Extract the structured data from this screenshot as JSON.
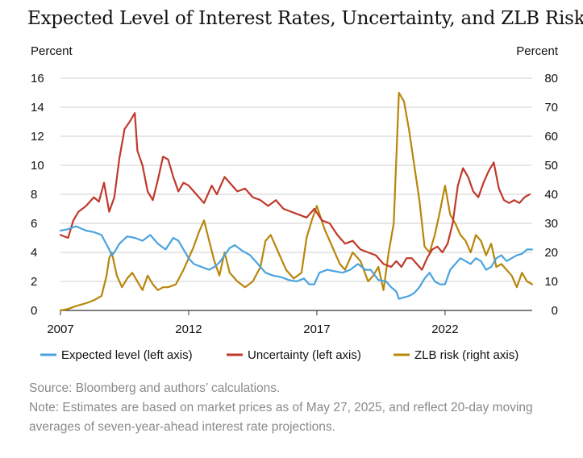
{
  "chart_data": {
    "type": "line",
    "title": "Expected Level of Interest Rates, Uncertainty, and ZLB Risk",
    "left_axis": {
      "label": "Percent",
      "ylim": [
        0,
        16
      ],
      "ticks": [
        "0",
        "2",
        "4",
        "6",
        "8",
        "10",
        "12",
        "14",
        "16"
      ]
    },
    "right_axis": {
      "label": "Percent",
      "ylim": [
        0,
        80
      ],
      "ticks": [
        "0",
        "10",
        "20",
        "30",
        "40",
        "50",
        "60",
        "70",
        "80"
      ]
    },
    "x_axis": {
      "xlim": [
        2007,
        2025.4
      ],
      "ticks": [
        2007,
        2012,
        2017,
        2022
      ],
      "tick_labels": [
        "2007",
        "2012",
        "2017",
        "2022"
      ]
    },
    "grid": true,
    "legend_position": "bottom",
    "series": [
      {
        "name": "Expected level (left axis)",
        "axis": "left",
        "color": "#4aa3df",
        "x": [
          2007.0,
          2007.3,
          2007.6,
          2008.0,
          2008.3,
          2008.6,
          2008.9,
          2009.0,
          2009.1,
          2009.3,
          2009.6,
          2009.9,
          2010.2,
          2010.5,
          2010.8,
          2011.1,
          2011.4,
          2011.6,
          2011.8,
          2012.0,
          2012.2,
          2012.5,
          2012.8,
          2013.0,
          2013.2,
          2013.4,
          2013.6,
          2013.8,
          2014.1,
          2014.4,
          2014.7,
          2015.0,
          2015.3,
          2015.6,
          2015.9,
          2016.2,
          2016.5,
          2016.7,
          2016.9,
          2017.1,
          2017.4,
          2017.7,
          2018.0,
          2018.3,
          2018.6,
          2018.9,
          2019.1,
          2019.4,
          2019.7,
          2019.9,
          2020.1,
          2020.2,
          2020.4,
          2020.6,
          2020.8,
          2021.0,
          2021.2,
          2021.4,
          2021.6,
          2021.8,
          2022.0,
          2022.2,
          2022.4,
          2022.6,
          2022.8,
          2023.0,
          2023.2,
          2023.4,
          2023.6,
          2023.8,
          2024.0,
          2024.2,
          2024.4,
          2024.6,
          2024.8,
          2025.0,
          2025.2,
          2025.4
        ],
        "values": [
          5.5,
          5.6,
          5.8,
          5.5,
          5.4,
          5.2,
          4.2,
          3.8,
          4.0,
          4.6,
          5.1,
          5.0,
          4.8,
          5.2,
          4.6,
          4.2,
          5.0,
          4.8,
          4.2,
          3.6,
          3.2,
          3.0,
          2.8,
          3.0,
          3.3,
          3.8,
          4.3,
          4.5,
          4.1,
          3.8,
          3.2,
          2.6,
          2.4,
          2.3,
          2.1,
          2.0,
          2.2,
          1.8,
          1.8,
          2.6,
          2.8,
          2.7,
          2.6,
          2.8,
          3.2,
          2.8,
          2.8,
          2.1,
          2.0,
          1.6,
          1.3,
          0.8,
          0.9,
          1.0,
          1.2,
          1.6,
          2.2,
          2.6,
          2.0,
          1.8,
          1.8,
          2.8,
          3.2,
          3.6,
          3.4,
          3.2,
          3.6,
          3.4,
          2.8,
          3.0,
          3.6,
          3.8,
          3.4,
          3.6,
          3.8,
          3.9,
          4.2,
          4.2
        ]
      },
      {
        "name": "Uncertainty (left axis)",
        "axis": "left",
        "color": "#c0392b",
        "x": [
          2007.0,
          2007.3,
          2007.5,
          2007.7,
          2008.0,
          2008.3,
          2008.5,
          2008.7,
          2008.9,
          2009.1,
          2009.3,
          2009.5,
          2009.7,
          2009.9,
          2010.0,
          2010.2,
          2010.4,
          2010.6,
          2010.8,
          2011.0,
          2011.2,
          2011.4,
          2011.6,
          2011.8,
          2012.0,
          2012.3,
          2012.6,
          2012.9,
          2013.1,
          2013.4,
          2013.6,
          2013.9,
          2014.2,
          2014.5,
          2014.8,
          2015.1,
          2015.4,
          2015.7,
          2016.0,
          2016.3,
          2016.6,
          2016.9,
          2017.2,
          2017.5,
          2017.8,
          2018.1,
          2018.4,
          2018.7,
          2019.0,
          2019.3,
          2019.6,
          2019.9,
          2020.1,
          2020.3,
          2020.5,
          2020.7,
          2020.9,
          2021.1,
          2021.3,
          2021.5,
          2021.7,
          2021.9,
          2022.1,
          2022.3,
          2022.5,
          2022.7,
          2022.9,
          2023.1,
          2023.3,
          2023.5,
          2023.7,
          2023.9,
          2024.1,
          2024.3,
          2024.5,
          2024.7,
          2024.9,
          2025.1,
          2025.3
        ],
        "values": [
          5.2,
          5.0,
          6.2,
          6.8,
          7.2,
          7.8,
          7.5,
          8.8,
          6.8,
          7.8,
          10.5,
          12.5,
          13.0,
          13.6,
          11.0,
          10.0,
          8.2,
          7.6,
          9.0,
          10.6,
          10.4,
          9.2,
          8.2,
          8.8,
          8.6,
          8.0,
          7.4,
          8.6,
          8.0,
          9.2,
          8.8,
          8.2,
          8.4,
          7.8,
          7.6,
          7.2,
          7.6,
          7.0,
          6.8,
          6.6,
          6.4,
          7.0,
          6.2,
          6.0,
          5.2,
          4.6,
          4.8,
          4.2,
          4.0,
          3.8,
          3.2,
          3.0,
          3.4,
          3.0,
          3.6,
          3.6,
          3.2,
          2.8,
          3.6,
          4.2,
          4.4,
          4.0,
          4.6,
          6.0,
          8.6,
          9.8,
          9.2,
          8.2,
          7.8,
          8.8,
          9.6,
          10.2,
          8.4,
          7.6,
          7.4,
          7.6,
          7.4,
          7.8,
          8.0
        ]
      },
      {
        "name": "ZLB risk (right axis)",
        "axis": "right",
        "color": "#b8860b",
        "x": [
          2007.0,
          2007.3,
          2007.6,
          2008.0,
          2008.3,
          2008.6,
          2008.8,
          2008.9,
          2009.0,
          2009.2,
          2009.4,
          2009.6,
          2009.8,
          2010.0,
          2010.2,
          2010.4,
          2010.6,
          2010.8,
          2011.0,
          2011.2,
          2011.5,
          2011.8,
          2012.0,
          2012.2,
          2012.4,
          2012.6,
          2012.8,
          2013.0,
          2013.2,
          2013.4,
          2013.6,
          2013.9,
          2014.2,
          2014.5,
          2014.8,
          2015.0,
          2015.2,
          2015.5,
          2015.8,
          2016.1,
          2016.4,
          2016.6,
          2016.8,
          2017.0,
          2017.3,
          2017.6,
          2017.9,
          2018.1,
          2018.4,
          2018.7,
          2019.0,
          2019.2,
          2019.4,
          2019.6,
          2019.8,
          2020.0,
          2020.2,
          2020.4,
          2020.6,
          2020.8,
          2021.0,
          2021.2,
          2021.4,
          2021.6,
          2021.8,
          2022.0,
          2022.2,
          2022.4,
          2022.6,
          2022.8,
          2023.0,
          2023.2,
          2023.4,
          2023.6,
          2023.8,
          2024.0,
          2024.2,
          2024.4,
          2024.6,
          2024.8,
          2025.0,
          2025.2,
          2025.4
        ],
        "values": [
          0,
          0.5,
          1.5,
          2.5,
          3.5,
          5,
          12,
          18,
          20,
          12,
          8,
          11,
          13,
          10,
          7,
          12,
          9,
          7,
          8,
          8,
          9,
          14,
          18,
          22,
          27,
          31,
          24,
          17,
          12,
          20,
          13,
          10,
          8,
          10,
          15,
          24,
          26,
          20,
          14,
          11,
          13,
          25,
          31,
          36,
          28,
          22,
          16,
          14,
          20,
          17,
          10,
          12,
          15,
          7,
          20,
          30,
          75,
          72,
          62,
          50,
          38,
          22,
          20,
          26,
          34,
          43,
          33,
          30,
          26,
          24,
          20,
          26,
          24,
          19,
          23,
          15,
          16,
          14,
          12,
          8,
          13,
          10,
          9
        ]
      }
    ]
  },
  "footnote": {
    "source": "Source: Bloomberg and authors’ calculations.",
    "note": "Note: Estimates are based on market prices as of May 27, 2025, and reflect 20-day moving averages of seven-year-ahead interest rate projections."
  }
}
